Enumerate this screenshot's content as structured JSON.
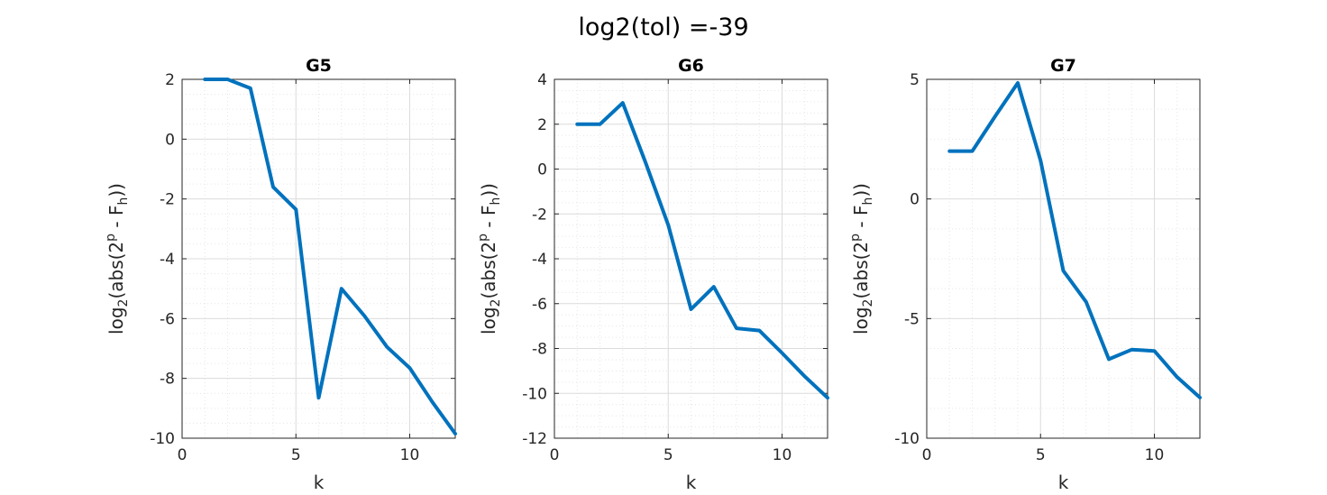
{
  "figure_title": "log2(tol) =-39",
  "colors": {
    "series": "#0072bd",
    "axis": "#262626",
    "grid": "#dcdcdc"
  },
  "chart_data": [
    {
      "type": "line",
      "title": "G5",
      "xlabel": "k",
      "ylabel": "log2(abs(2^p - F_h))",
      "ylabel_parts": {
        "base": "log",
        "sub": "2",
        "mid": "(abs(2",
        "sup": "p",
        "mid2": " - F",
        "sub2": "h",
        "end": "))"
      },
      "xlim": [
        0,
        12
      ],
      "ylim": [
        -10,
        2
      ],
      "xticks": [
        0,
        5,
        10
      ],
      "yticks": [
        -10,
        -8,
        -6,
        -4,
        -2,
        0,
        2
      ],
      "grid": true,
      "x": [
        1,
        2,
        3,
        4,
        5,
        6,
        7,
        8,
        9,
        10,
        11,
        12
      ],
      "values": [
        2,
        2,
        1.7,
        -1.6,
        -2.35,
        -8.65,
        -5.0,
        -5.9,
        -6.95,
        -7.65,
        -8.8,
        -9.85
      ]
    },
    {
      "type": "line",
      "title": "G6",
      "xlabel": "k",
      "ylabel": "log2(abs(2^p - F_h))",
      "ylabel_parts": {
        "base": "log",
        "sub": "2",
        "mid": "(abs(2",
        "sup": "p",
        "mid2": " - F",
        "sub2": "h",
        "end": "))"
      },
      "xlim": [
        0,
        12
      ],
      "ylim": [
        -12,
        4
      ],
      "xticks": [
        0,
        5,
        10
      ],
      "yticks": [
        -12,
        -10,
        -8,
        -6,
        -4,
        -2,
        0,
        2,
        4
      ],
      "grid": true,
      "x": [
        1,
        2,
        3,
        4,
        5,
        6,
        7,
        8,
        9,
        10,
        11,
        12
      ],
      "values": [
        2,
        2,
        2.95,
        0.3,
        -2.5,
        -6.25,
        -5.25,
        -7.1,
        -7.2,
        -8.2,
        -9.25,
        -10.2
      ]
    },
    {
      "type": "line",
      "title": "G7",
      "xlabel": "k",
      "ylabel": "log2(abs(2^p - F_h))",
      "ylabel_parts": {
        "base": "log",
        "sub": "2",
        "mid": "(abs(2",
        "sup": "p",
        "mid2": " - F",
        "sub2": "h",
        "end": "))"
      },
      "xlim": [
        0,
        12
      ],
      "ylim": [
        -10,
        5
      ],
      "xticks": [
        0,
        5,
        10
      ],
      "yticks": [
        -10,
        -5,
        0,
        5
      ],
      "grid": true,
      "x": [
        1,
        2,
        3,
        4,
        5,
        6,
        7,
        8,
        9,
        10,
        11,
        12
      ],
      "values": [
        2,
        2,
        3.45,
        4.85,
        1.6,
        -3.0,
        -4.3,
        -6.7,
        -6.3,
        -6.35,
        -7.45,
        -8.3
      ]
    }
  ]
}
